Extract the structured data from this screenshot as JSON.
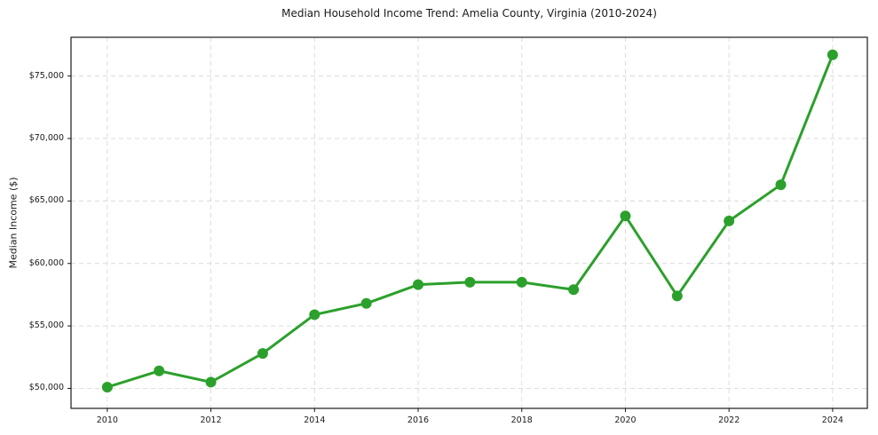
{
  "chart_data": {
    "type": "line",
    "title": "Median Household Income Trend: Amelia County, Virginia (2010-2024)",
    "ylabel": "Median Income ($)",
    "xlabel": "",
    "x": [
      2010,
      2011,
      2012,
      2013,
      2014,
      2015,
      2016,
      2017,
      2018,
      2019,
      2020,
      2021,
      2022,
      2023,
      2024
    ],
    "values": [
      50100,
      51400,
      50500,
      52800,
      55900,
      56800,
      58300,
      58500,
      58500,
      57900,
      63800,
      57400,
      63400,
      66300,
      76700
    ],
    "series_name": "Median household income",
    "xlim": [
      2009.3,
      2024.67
    ],
    "ylim": [
      48400,
      78100
    ],
    "x_ticks": [
      {
        "value": 2010,
        "label": "2010"
      },
      {
        "value": 2012,
        "label": "2012"
      },
      {
        "value": 2014,
        "label": "2014"
      },
      {
        "value": 2016,
        "label": "2016"
      },
      {
        "value": 2018,
        "label": "2018"
      },
      {
        "value": 2020,
        "label": "2020"
      },
      {
        "value": 2022,
        "label": "2022"
      },
      {
        "value": 2024,
        "label": "2024"
      }
    ],
    "y_ticks": [
      {
        "value": 50000,
        "label": "$50,000"
      },
      {
        "value": 55000,
        "label": "$55,000"
      },
      {
        "value": 60000,
        "label": "$60,000"
      },
      {
        "value": 65000,
        "label": "$65,000"
      },
      {
        "value": 70000,
        "label": "$70,000"
      },
      {
        "value": 75000,
        "label": "$75,000"
      }
    ],
    "grid": true,
    "legend_position": "none",
    "line_color": "#2ca02c",
    "marker": "circle"
  },
  "styles": {
    "background_color": "#ffffff",
    "grid_color": "#d9d9d9",
    "spine_color": "#1a1a1a",
    "text_color": "#1a1a1a"
  }
}
